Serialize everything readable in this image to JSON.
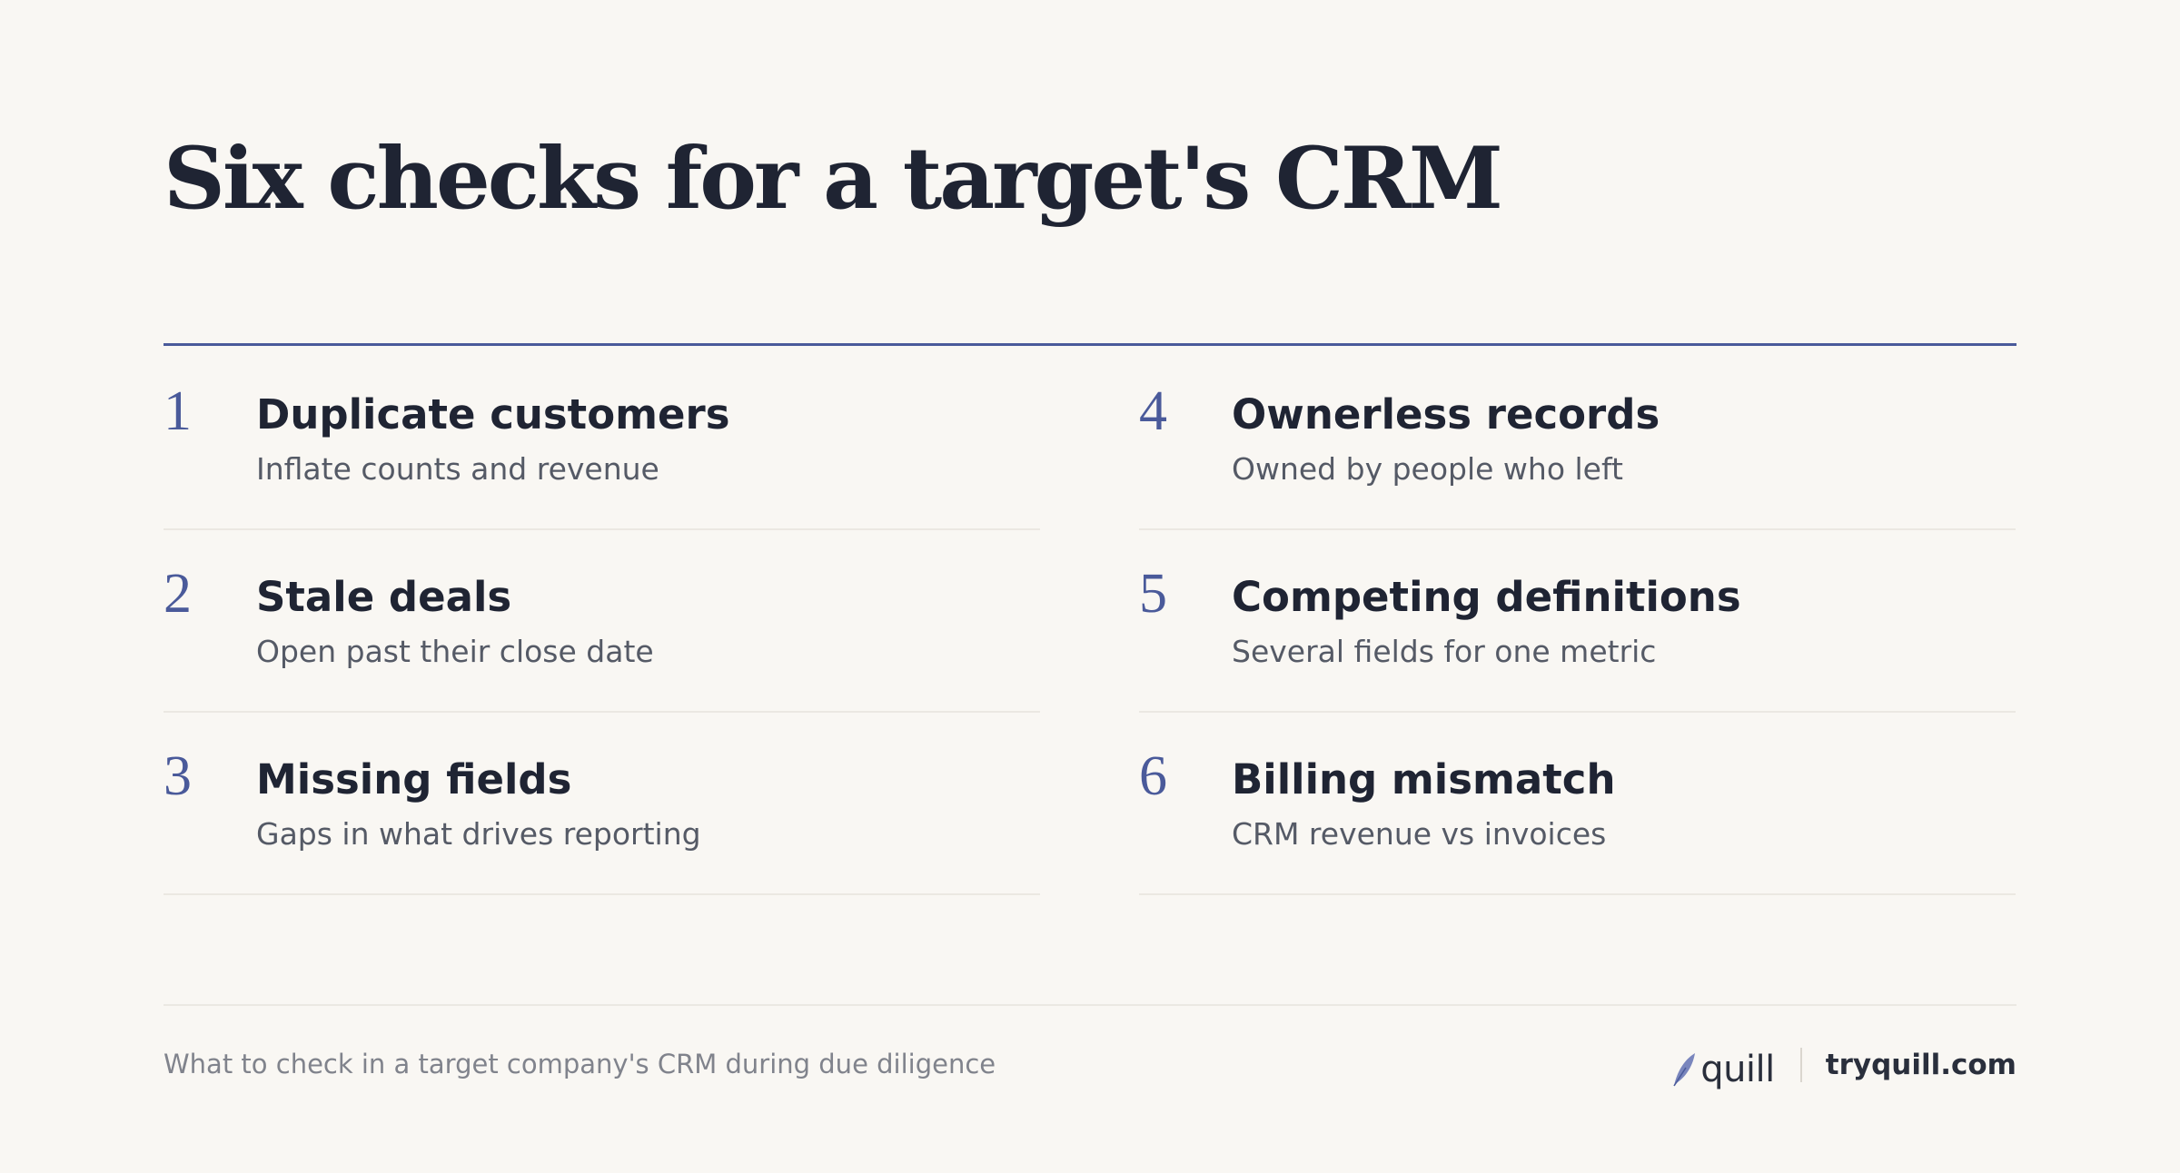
{
  "title": "Six checks for a target's CRM",
  "checks": [
    {
      "number": "1",
      "heading": "Duplicate customers",
      "description": "Inflate counts and revenue"
    },
    {
      "number": "2",
      "heading": "Stale deals",
      "description": "Open past their close date"
    },
    {
      "number": "3",
      "heading": "Missing fields",
      "description": "Gaps in what drives reporting"
    },
    {
      "number": "4",
      "heading": "Ownerless records",
      "description": "Owned by people who left"
    },
    {
      "number": "5",
      "heading": "Competing definitions",
      "description": "Several fields for one metric"
    },
    {
      "number": "6",
      "heading": "Billing mismatch",
      "description": "CRM revenue vs invoices"
    }
  ],
  "footer": {
    "caption": "What to check in a target company's CRM during due diligence",
    "brand_name": "quill",
    "brand_icon": "quill-feather-icon",
    "url": "tryquill.com"
  },
  "colors": {
    "background": "#f9f7f3",
    "accent": "#4a5a9a",
    "text": "#1f2433",
    "muted": "#555a66"
  }
}
